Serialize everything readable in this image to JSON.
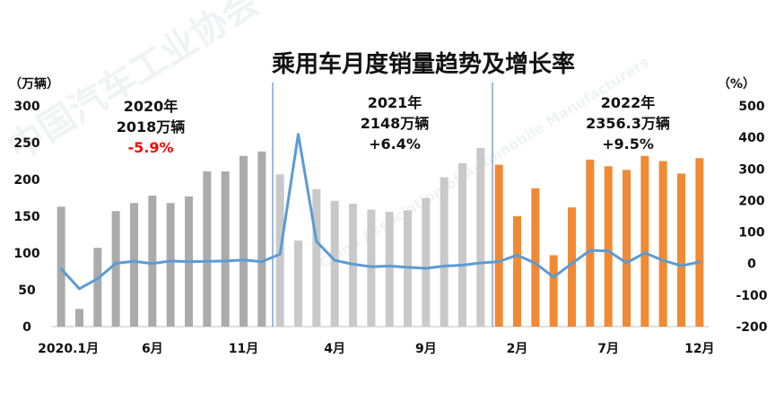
{
  "chart_data": {
    "type": "bar",
    "title": "乘用车月度销量趋势及增长率",
    "y_left_unit": "（万辆）",
    "y_right_unit": "（%）",
    "y_left_ticks": [
      "0",
      "50",
      "100",
      "150",
      "200",
      "250",
      "300"
    ],
    "y_right_ticks": [
      "-200",
      "-100",
      "0",
      "100",
      "200",
      "300",
      "400",
      "500"
    ],
    "ylim_left": [
      0,
      300
    ],
    "ylim_right": [
      -200,
      500
    ],
    "x_tick_labels": [
      "2020.1月",
      "6月",
      "11月",
      "4月",
      "9月",
      "2月",
      "7月",
      "12月"
    ],
    "x_tick_month_index": [
      0,
      5,
      10,
      15,
      20,
      25,
      30,
      35
    ],
    "x_months": 36,
    "series": [
      {
        "values": [
          163,
          24,
          107,
          157,
          168,
          178,
          168,
          177,
          211,
          211,
          232,
          238,
          207,
          117,
          187,
          171,
          167,
          159,
          156,
          158,
          175,
          203,
          222,
          243,
          220,
          150,
          188,
          97,
          162,
          227,
          218,
          213,
          232,
          225,
          208,
          229
        ],
        "colors_by_year": [
          "#ababab",
          "#c9c9c9",
          "#f08a34"
        ]
      },
      {
        "values": [
          -17,
          -80,
          -48,
          1,
          7,
          0,
          8,
          6,
          7,
          8,
          11,
          6,
          30,
          410,
          70,
          10,
          -2,
          -10,
          -8,
          -12,
          -15,
          -8,
          -5,
          2,
          6,
          27,
          1,
          -43,
          0,
          42,
          40,
          2,
          34,
          10,
          -7,
          5
        ],
        "color": "#5b9bd5"
      }
    ],
    "watermark": [
      "中国汽车工业协会",
      "China Association of Automobile Manufacturers"
    ],
    "annotations": [
      {
        "year": "2020年",
        "total": "2018万辆",
        "growth": "-5.9%"
      },
      {
        "year": "2021年",
        "total": "2148万辆",
        "growth": "+6.4%"
      },
      {
        "year": "2022年",
        "total": "2356.3万辆",
        "growth": "+9.5%"
      }
    ],
    "grid": false,
    "legend": "none"
  }
}
